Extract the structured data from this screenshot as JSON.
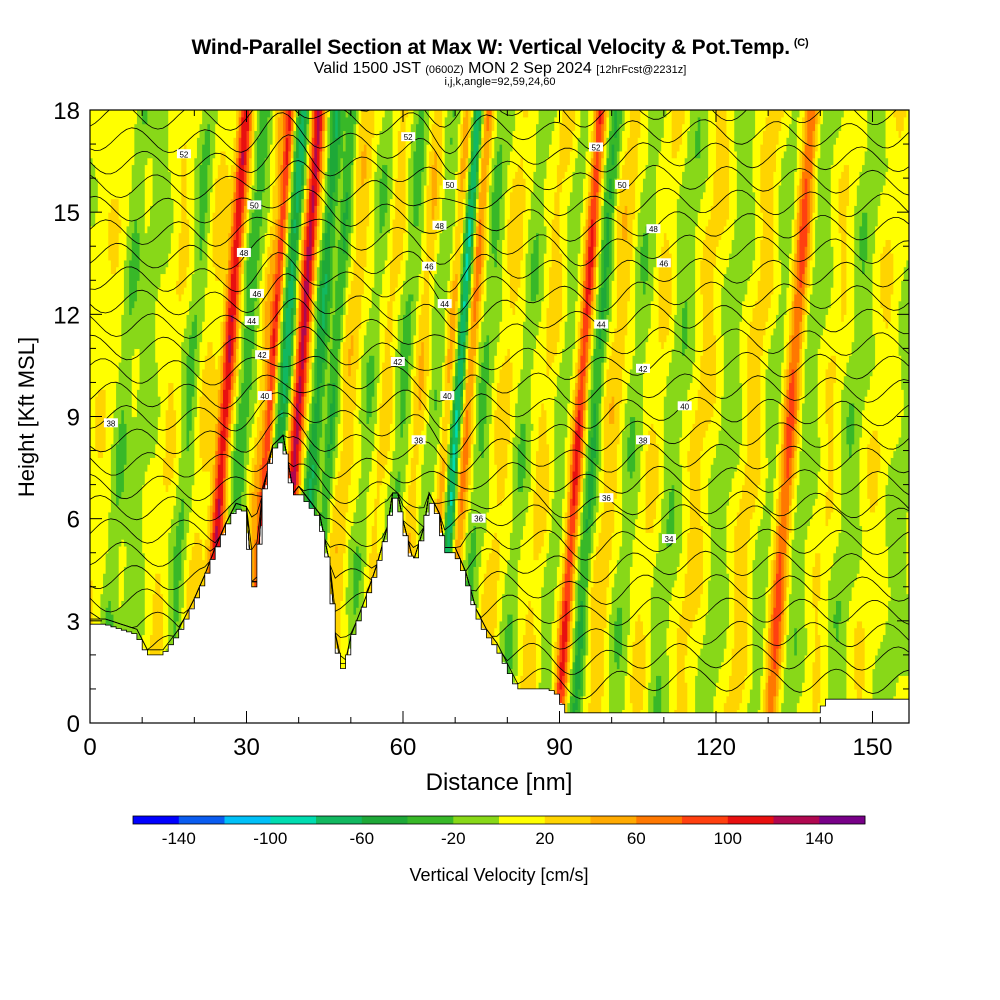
{
  "title": {
    "main": "Wind-Parallel Section at Max W: Vertical Velocity & Pot.Temp.",
    "copyright": "(C)",
    "valid_a": "Valid 1500 JST",
    "valid_z": "(0600Z)",
    "valid_b": "MON 2 Sep 2024",
    "forecast": "[12hrFcst@2231z]",
    "indices": "i,j,k,angle=92,59,24,60"
  },
  "chart_data": {
    "type": "heatmap",
    "xlabel": "Distance [nm]",
    "ylabel": "Height [Kft MSL]",
    "xlim": [
      0,
      157
    ],
    "ylim": [
      0,
      18
    ],
    "x_ticks": [
      0,
      30,
      60,
      90,
      120,
      150
    ],
    "y_ticks": [
      0,
      3,
      6,
      9,
      12,
      15,
      18
    ],
    "x_minor_step": 10,
    "y_minor_step": 1,
    "background_field": "Vertical Velocity",
    "contour_field": "Potential Temperature",
    "terrain": [
      [
        0,
        2.9
      ],
      [
        3,
        2.9
      ],
      [
        9,
        2.6
      ],
      [
        11,
        2.0
      ],
      [
        14,
        2.0
      ],
      [
        17,
        2.6
      ],
      [
        20,
        3.5
      ],
      [
        22,
        4.2
      ],
      [
        24,
        5.0
      ],
      [
        26,
        5.7
      ],
      [
        28,
        6.3
      ],
      [
        30,
        6.2
      ],
      [
        31,
        4.0
      ],
      [
        32,
        4.0
      ],
      [
        33,
        6.5
      ],
      [
        35,
        8.0
      ],
      [
        37,
        8.3
      ],
      [
        38,
        7.5
      ],
      [
        39,
        6.6
      ],
      [
        40,
        6.8
      ],
      [
        42,
        6.4
      ],
      [
        44,
        6.0
      ],
      [
        46,
        4.5
      ],
      [
        47,
        2.5
      ],
      [
        48,
        1.6
      ],
      [
        49,
        1.6
      ],
      [
        50,
        2.4
      ],
      [
        51,
        2.8
      ],
      [
        53,
        3.6
      ],
      [
        55,
        4.5
      ],
      [
        57,
        5.6
      ],
      [
        58,
        6.6
      ],
      [
        59,
        6.6
      ],
      [
        60,
        5.8
      ],
      [
        62,
        4.6
      ],
      [
        64,
        5.6
      ],
      [
        65,
        6.6
      ],
      [
        67,
        6.0
      ],
      [
        68,
        5.0
      ],
      [
        70,
        5.0
      ],
      [
        72,
        4.3
      ],
      [
        74,
        3.2
      ],
      [
        76,
        2.6
      ],
      [
        78,
        2.2
      ],
      [
        80,
        1.6
      ],
      [
        82,
        1.0
      ],
      [
        88,
        1.0
      ],
      [
        90,
        0.8
      ],
      [
        91,
        0.3
      ],
      [
        100,
        0.3
      ],
      [
        140,
        0.3
      ],
      [
        141,
        0.7
      ],
      [
        157,
        0.7
      ]
    ],
    "theta_labels": [
      {
        "x": 4,
        "y": 8.8,
        "t": "38"
      },
      {
        "x": 18,
        "y": 16.7,
        "t": "52"
      },
      {
        "x": 31.5,
        "y": 15.2,
        "t": "50"
      },
      {
        "x": 29.5,
        "y": 13.8,
        "t": "48"
      },
      {
        "x": 32,
        "y": 12.6,
        "t": "46"
      },
      {
        "x": 31,
        "y": 11.8,
        "t": "44"
      },
      {
        "x": 33,
        "y": 10.8,
        "t": "42"
      },
      {
        "x": 33.5,
        "y": 9.6,
        "t": "40"
      },
      {
        "x": 61,
        "y": 17.2,
        "t": "52"
      },
      {
        "x": 69,
        "y": 15.8,
        "t": "50"
      },
      {
        "x": 67,
        "y": 14.6,
        "t": "48"
      },
      {
        "x": 65,
        "y": 13.4,
        "t": "46"
      },
      {
        "x": 68,
        "y": 12.3,
        "t": "44"
      },
      {
        "x": 59,
        "y": 10.6,
        "t": "42"
      },
      {
        "x": 68.5,
        "y": 9.6,
        "t": "40"
      },
      {
        "x": 63,
        "y": 8.3,
        "t": "38"
      },
      {
        "x": 74.5,
        "y": 6.0,
        "t": "36"
      },
      {
        "x": 97,
        "y": 16.9,
        "t": "52"
      },
      {
        "x": 102,
        "y": 15.8,
        "t": "50"
      },
      {
        "x": 108,
        "y": 14.5,
        "t": "48"
      },
      {
        "x": 110,
        "y": 13.5,
        "t": "46"
      },
      {
        "x": 98,
        "y": 11.7,
        "t": "44"
      },
      {
        "x": 106,
        "y": 10.4,
        "t": "42"
      },
      {
        "x": 114,
        "y": 9.3,
        "t": "40"
      },
      {
        "x": 106,
        "y": 8.3,
        "t": "38"
      },
      {
        "x": 99,
        "y": 6.6,
        "t": "36"
      },
      {
        "x": 111,
        "y": 5.4,
        "t": "34"
      }
    ],
    "colorbar": {
      "label": "Vertical Velocity [cm/s]",
      "tick_labels": [
        "-140",
        "-100",
        "-60",
        "-20",
        "20",
        "60",
        "100",
        "140"
      ],
      "levels": [
        -160,
        -140,
        -120,
        -100,
        -80,
        -60,
        -40,
        -20,
        0,
        20,
        40,
        60,
        80,
        100,
        120,
        140,
        160
      ],
      "colors": [
        "#0000ff",
        "#0a5cf0",
        "#00c0f8",
        "#00dcb0",
        "#12b860",
        "#1ea838",
        "#38b828",
        "#88d818",
        "#ffff00",
        "#ffd400",
        "#ffaa00",
        "#ff7800",
        "#ff4010",
        "#e81010",
        "#b00850",
        "#780088"
      ]
    }
  }
}
